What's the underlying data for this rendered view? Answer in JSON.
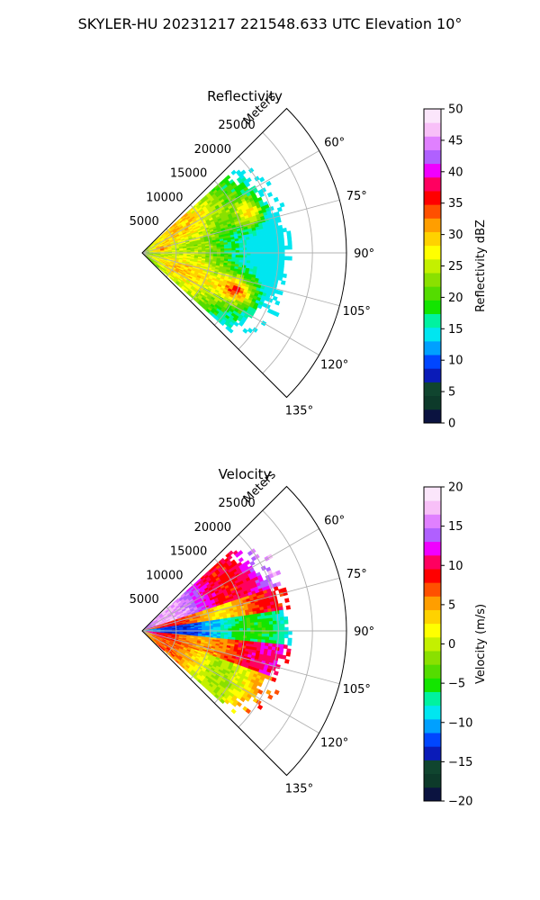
{
  "figure": {
    "suptitle": "SKYLER-HU  20231217  221548.633 UTC Elevation 10°"
  },
  "chart_data": [
    {
      "type": "heatmap",
      "projection": "polar-sector",
      "title": "Reflectivity",
      "radial_axis_label": "Meters",
      "radial_ticks": [
        5000,
        10000,
        15000,
        20000,
        25000
      ],
      "radial_tick_labels": [
        "5000",
        "10000",
        "15000",
        "20000",
        "25000"
      ],
      "radial_max": 30000,
      "azimuth_range_deg": [
        45,
        135
      ],
      "azimuth_ticks": [
        60,
        75,
        90,
        105,
        120,
        135
      ],
      "azimuth_tick_labels": [
        "60°",
        "75°",
        "90°",
        "105°",
        "120°",
        "135°"
      ],
      "grid": true,
      "colorbar": {
        "label": "Reflectivity dBZ",
        "vmin": 0,
        "vmax": 50,
        "ticks": [
          0,
          5,
          10,
          15,
          20,
          25,
          30,
          35,
          40,
          45,
          50
        ],
        "tick_labels": [
          "0",
          "5",
          "10",
          "15",
          "20",
          "25",
          "30",
          "35",
          "40",
          "45",
          "50"
        ],
        "colors": [
          "#0b1340",
          "#0d3a2a",
          "#10452f",
          "#0a1bb8",
          "#0046ff",
          "#00a0ff",
          "#00e6f0",
          "#00f2a0",
          "#13e500",
          "#54dc00",
          "#8ae000",
          "#c4f000",
          "#ffff00",
          "#ffd200",
          "#ff9e00",
          "#ff5000",
          "#ff0000",
          "#ff0060",
          "#f000ff",
          "#b060ff",
          "#e080ff",
          "#f8c0f8",
          "#fbe6fb"
        ]
      },
      "field_description": "echo sector mostly 20-30 dBZ, patches up to 35-40 dBZ near 15000-20000 m",
      "echo_range_m": [
        0,
        22000
      ],
      "dominant_value_range": [
        20,
        30
      ],
      "peak_value_range": [
        35,
        40
      ]
    },
    {
      "type": "heatmap",
      "projection": "polar-sector",
      "title": "Velocity",
      "radial_axis_label": "Meters",
      "radial_ticks": [
        5000,
        10000,
        15000,
        20000,
        25000
      ],
      "radial_tick_labels": [
        "5000",
        "10000",
        "15000",
        "20000",
        "25000"
      ],
      "radial_max": 30000,
      "azimuth_range_deg": [
        45,
        135
      ],
      "azimuth_ticks": [
        60,
        75,
        90,
        105,
        120,
        135
      ],
      "azimuth_tick_labels": [
        "60°",
        "75°",
        "90°",
        "105°",
        "120°",
        "135°"
      ],
      "grid": true,
      "colorbar": {
        "label": "Velocity (m/s)",
        "vmin": -20,
        "vmax": 20,
        "ticks": [
          -20,
          -15,
          -10,
          -5,
          0,
          5,
          10,
          15,
          20
        ],
        "tick_labels": [
          "−20",
          "−15",
          "−10",
          "−5",
          "0",
          "5",
          "10",
          "15",
          "20"
        ],
        "colors": [
          "#0b1340",
          "#0d3a2a",
          "#10452f",
          "#0a1bb8",
          "#0046ff",
          "#00a0ff",
          "#00e6f0",
          "#00f2a0",
          "#13e500",
          "#54dc00",
          "#8ae000",
          "#c4f000",
          "#ffff00",
          "#ffd200",
          "#ff9e00",
          "#ff5000",
          "#ff0000",
          "#ff0060",
          "#f000ff",
          "#b060ff",
          "#e080ff",
          "#f8c0f8",
          "#fbe6fb"
        ]
      },
      "field_description": "positive 5-20 m/s in 55-80 deg, negative -5 to -15 m/s near 85-95 deg, positive 0-10 m/s in 95-130 deg",
      "echo_range_m": [
        0,
        22000
      ],
      "bands": [
        {
          "az_range": [
            55,
            72
          ],
          "value_range": [
            10,
            18
          ]
        },
        {
          "az_range": [
            72,
            82
          ],
          "value_range": [
            2,
            10
          ]
        },
        {
          "az_range": [
            82,
            96
          ],
          "value_range": [
            -15,
            -5
          ]
        },
        {
          "az_range": [
            96,
            110
          ],
          "value_range": [
            5,
            12
          ]
        },
        {
          "az_range": [
            110,
            132
          ],
          "value_range": [
            0,
            8
          ]
        }
      ]
    }
  ]
}
